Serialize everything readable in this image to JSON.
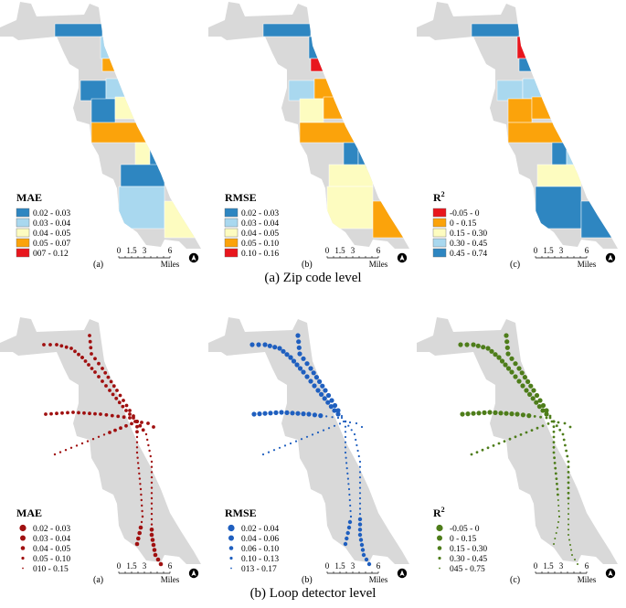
{
  "colors": {
    "land": "#d9d9d9",
    "zip_classes": [
      "#2e86c1",
      "#a9d8ef",
      "#fdfcc0",
      "#fba30b",
      "#e8161d"
    ],
    "r2_zip_classes": [
      "#e8161d",
      "#fba30b",
      "#fdfcc0",
      "#a9d8ef",
      "#2e86c1"
    ],
    "mae_points": "#a01010",
    "rmse_points": "#1f5fbf",
    "r2_points": "#4e7d1a"
  },
  "zip_level": {
    "caption": "(a) Zip code level",
    "panels": [
      {
        "title": "MAE",
        "title_sup": "",
        "panel_label": "(a)",
        "classes": [
          "0.02 - 0.03",
          "0.03 - 0.04",
          "0.04 - 0.05",
          "0.05 - 0.07",
          "007 - 0.12"
        ]
      },
      {
        "title": "RMSE",
        "title_sup": "",
        "panel_label": "(b)",
        "classes": [
          "0.02 - 0.03",
          "0.03 - 0.04",
          "0.04 - 0.05",
          "0.05 - 0.10",
          "0.10 - 0.16"
        ]
      },
      {
        "title": "R",
        "title_sup": "2",
        "panel_label": "(c)",
        "classes": [
          "-0.05 - 0",
          "0 - 0.15",
          "0.15 - 0.30",
          "0.30 - 0.45",
          "0.45 - 0.74"
        ]
      }
    ]
  },
  "loop_level": {
    "caption": "(b) Loop detector level",
    "panels": [
      {
        "title": "MAE",
        "title_sup": "",
        "panel_label": "(a)",
        "classes": [
          "0.02 - 0.03",
          "0.03 - 0.04",
          "0.04 - 0.05",
          "0.05 - 0.10",
          "010 - 0.15"
        ]
      },
      {
        "title": "RMSE",
        "title_sup": "",
        "panel_label": "(b)",
        "classes": [
          "0.02 - 0.04",
          "0.04 - 0.06",
          "0.06 - 0.10",
          "0.10 - 0.13",
          "013 - 0.17"
        ]
      },
      {
        "title": "R",
        "title_sup": "2",
        "panel_label": "(c)",
        "classes": [
          "-0.05 - 0",
          "0 - 0.15",
          "0.15 - 0.30",
          "0.30 - 0.45",
          "045 - 0.75"
        ]
      }
    ]
  },
  "scale_bar": {
    "ticks": [
      "0",
      "1.5",
      "3",
      "6"
    ],
    "unit": "Miles"
  },
  "north_arrow": "north-arrow-icon"
}
